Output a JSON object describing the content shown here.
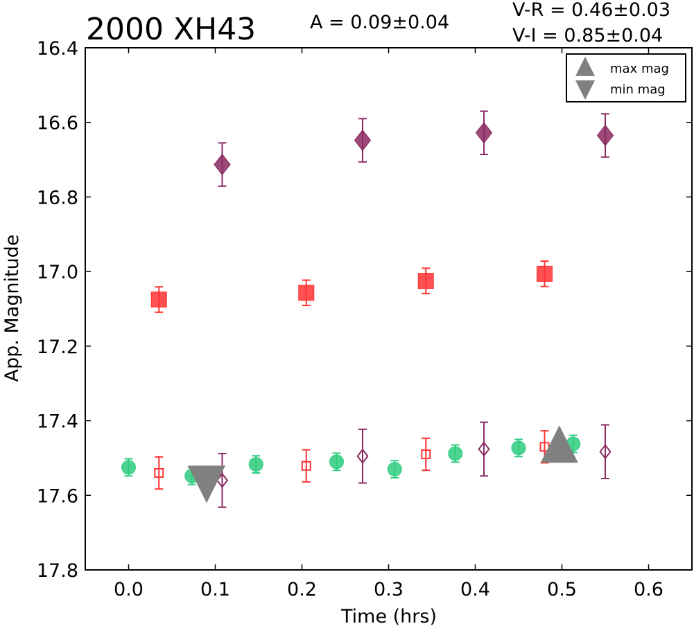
{
  "chart_data": {
    "type": "scatter",
    "title": "2000 XH43",
    "annotations": {
      "amplitude": "A  = 0.09±0.04",
      "vr": "V-R = 0.46±0.03",
      "vi": "V-I  = 0.85±0.04"
    },
    "xlabel": "Time (hrs)",
    "ylabel": "App. Magnitude",
    "xlim": [
      -0.05,
      0.65
    ],
    "ylim": [
      17.8,
      16.4
    ],
    "y_inverted": true,
    "xticks": [
      "0.0",
      "0.1",
      "0.2",
      "0.3",
      "0.4",
      "0.5",
      "0.6"
    ],
    "yticks": [
      "16.4",
      "16.6",
      "16.8",
      "17.0",
      "17.2",
      "17.4",
      "17.6",
      "17.8"
    ],
    "grid": false,
    "legend": {
      "placement": "top-right",
      "entries": [
        {
          "label": "max mag",
          "marker": "triangle-up",
          "color": "#808080"
        },
        {
          "label": "min mag",
          "marker": "triangle-down",
          "color": "#808080"
        }
      ]
    },
    "series": [
      {
        "marker": "circle",
        "color": "#2ecc80",
        "filled": true,
        "points": [
          {
            "x": 0.0,
            "y": 17.525,
            "err": 0.023
          },
          {
            "x": 0.073,
            "y": 17.548,
            "err": 0.023
          },
          {
            "x": 0.147,
            "y": 17.517,
            "err": 0.023
          },
          {
            "x": 0.24,
            "y": 17.51,
            "err": 0.023
          },
          {
            "x": 0.307,
            "y": 17.53,
            "err": 0.023
          },
          {
            "x": 0.377,
            "y": 17.488,
            "err": 0.023
          },
          {
            "x": 0.45,
            "y": 17.473,
            "err": 0.023
          },
          {
            "x": 0.513,
            "y": 17.462,
            "err": 0.023
          }
        ]
      },
      {
        "marker": "square",
        "color": "#ff3333",
        "filled": true,
        "points": [
          {
            "x": 0.035,
            "y": 17.075,
            "err": 0.034
          },
          {
            "x": 0.205,
            "y": 17.057,
            "err": 0.034
          },
          {
            "x": 0.343,
            "y": 17.025,
            "err": 0.034
          },
          {
            "x": 0.48,
            "y": 17.006,
            "err": 0.034
          }
        ]
      },
      {
        "marker": "square",
        "color": "#ff3333",
        "filled": false,
        "points": [
          {
            "x": 0.035,
            "y": 17.54,
            "err": 0.043
          },
          {
            "x": 0.205,
            "y": 17.521,
            "err": 0.043
          },
          {
            "x": 0.343,
            "y": 17.49,
            "err": 0.043
          },
          {
            "x": 0.48,
            "y": 17.47,
            "err": 0.043
          }
        ]
      },
      {
        "marker": "diamond",
        "color": "#8b2a62",
        "filled": true,
        "points": [
          {
            "x": 0.108,
            "y": 16.713,
            "err": 0.058
          },
          {
            "x": 0.27,
            "y": 16.648,
            "err": 0.058
          },
          {
            "x": 0.41,
            "y": 16.628,
            "err": 0.058
          },
          {
            "x": 0.55,
            "y": 16.635,
            "err": 0.058
          }
        ]
      },
      {
        "marker": "diamond",
        "color": "#8b2a62",
        "filled": false,
        "points": [
          {
            "x": 0.108,
            "y": 17.56,
            "err": 0.072
          },
          {
            "x": 0.27,
            "y": 17.495,
            "err": 0.072
          },
          {
            "x": 0.41,
            "y": 17.476,
            "err": 0.072
          },
          {
            "x": 0.55,
            "y": 17.483,
            "err": 0.072
          }
        ]
      }
    ],
    "extrema": [
      {
        "label": "min mag",
        "marker": "triangle-down",
        "x": 0.09,
        "y": 17.563,
        "color": "#808080"
      },
      {
        "label": "max mag",
        "marker": "triangle-up",
        "x": 0.497,
        "y": 17.47,
        "color": "#808080"
      }
    ]
  }
}
